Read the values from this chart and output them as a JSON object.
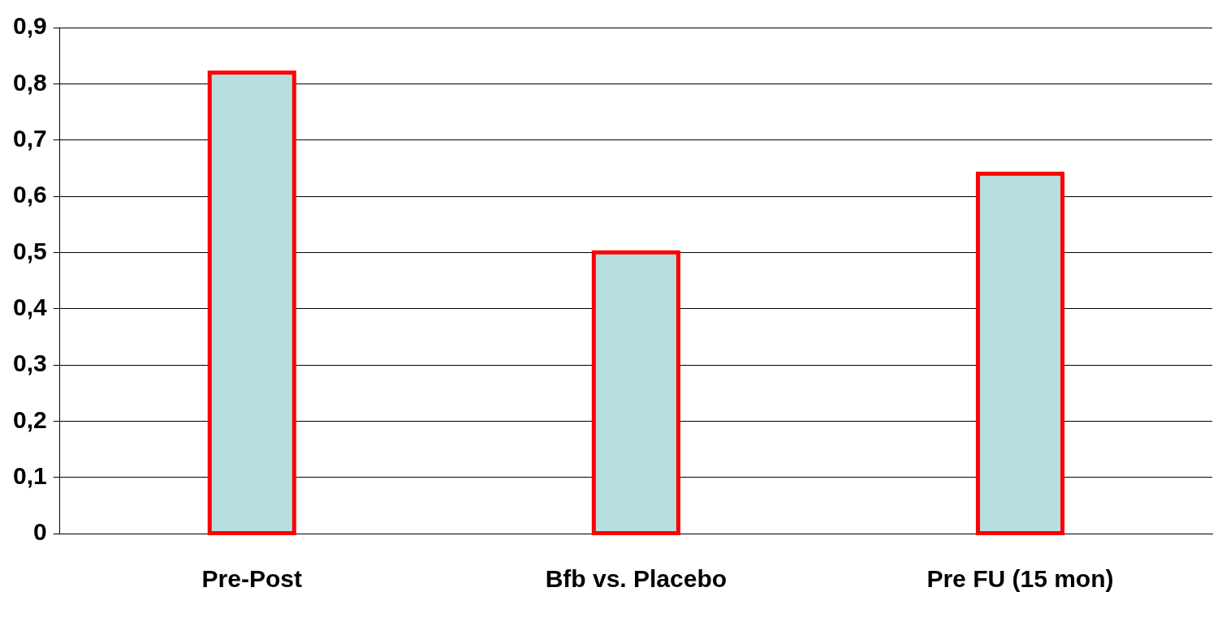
{
  "chart_data": {
    "type": "bar",
    "categories": [
      "Pre-Post",
      "Bfb vs. Placebo",
      "Pre FU (15 mon)"
    ],
    "series": [
      {
        "color": "#b8dfe0",
        "values": [
          0.82,
          0.5,
          0.64
        ]
      }
    ],
    "ylim": [
      0,
      0.9
    ],
    "yticks": [
      {
        "value": 0,
        "label": "0"
      },
      {
        "value": 0.1,
        "label": "0,1"
      },
      {
        "value": 0.2,
        "label": "0,2"
      },
      {
        "value": 0.3,
        "label": "0,3"
      },
      {
        "value": 0.4,
        "label": "0,4"
      },
      {
        "value": 0.5,
        "label": "0,5"
      },
      {
        "value": 0.6,
        "label": "0,6"
      },
      {
        "value": 0.7,
        "label": "0,7"
      },
      {
        "value": 0.8,
        "label": "0,8"
      },
      {
        "value": 0.9,
        "label": "0,9"
      }
    ],
    "grid": "y",
    "legend": false
  }
}
